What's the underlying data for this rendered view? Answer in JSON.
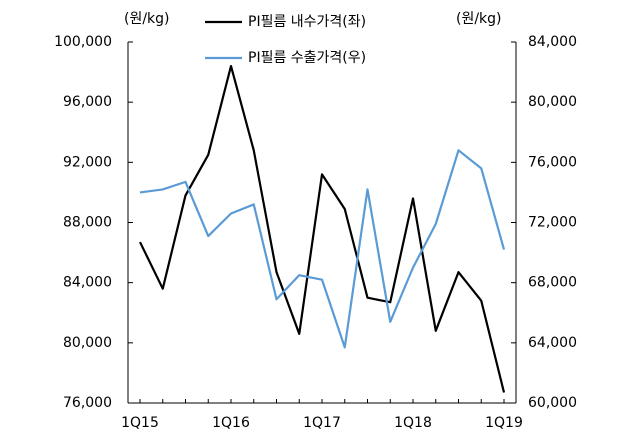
{
  "chart_data": {
    "type": "line",
    "y_label": "(원/kg)",
    "y2_label": "(원/kg)",
    "categories": [
      "1Q15",
      null,
      null,
      null,
      "1Q16",
      null,
      null,
      null,
      "1Q17",
      null,
      null,
      null,
      "1Q18",
      null,
      null,
      null,
      "1Q19"
    ],
    "series": [
      {
        "name": "PI필름 내수가격(좌)",
        "color": "#000000",
        "axis": "y",
        "values": [
          86700,
          83600,
          89800,
          92500,
          98400,
          92800,
          84700,
          80600,
          91200,
          88900,
          83000,
          82700,
          89600,
          80800,
          84700,
          82800,
          76700
        ]
      },
      {
        "name": "PI필름 수출가격(우)",
        "color": "#5b9bd5",
        "axis": "y2",
        "values": [
          74000,
          74200,
          74700,
          71100,
          72600,
          73200,
          66900,
          68500,
          68200,
          63700,
          74200,
          65400,
          69000,
          71900,
          76800,
          75600,
          70200
        ]
      }
    ],
    "ylim": [
      76000,
      100000
    ],
    "yticks": [
      {
        "value": 76000,
        "label": "76,000"
      },
      {
        "value": 80000,
        "label": "80,000"
      },
      {
        "value": 84000,
        "label": "84,000"
      },
      {
        "value": 88000,
        "label": "88,000"
      },
      {
        "value": 92000,
        "label": "92,000"
      },
      {
        "value": 96000,
        "label": "96,000"
      },
      {
        "value": 100000,
        "label": "100,000"
      }
    ],
    "y2lim": [
      60000,
      84000
    ],
    "y2ticks": [
      {
        "value": 60000,
        "label": "60,000"
      },
      {
        "value": 64000,
        "label": "64,000"
      },
      {
        "value": 68000,
        "label": "68,000"
      },
      {
        "value": 72000,
        "label": "72,000"
      },
      {
        "value": 76000,
        "label": "76,000"
      },
      {
        "value": 80000,
        "label": "80,000"
      },
      {
        "value": 84000,
        "label": "84,000"
      }
    ],
    "grid": false
  }
}
